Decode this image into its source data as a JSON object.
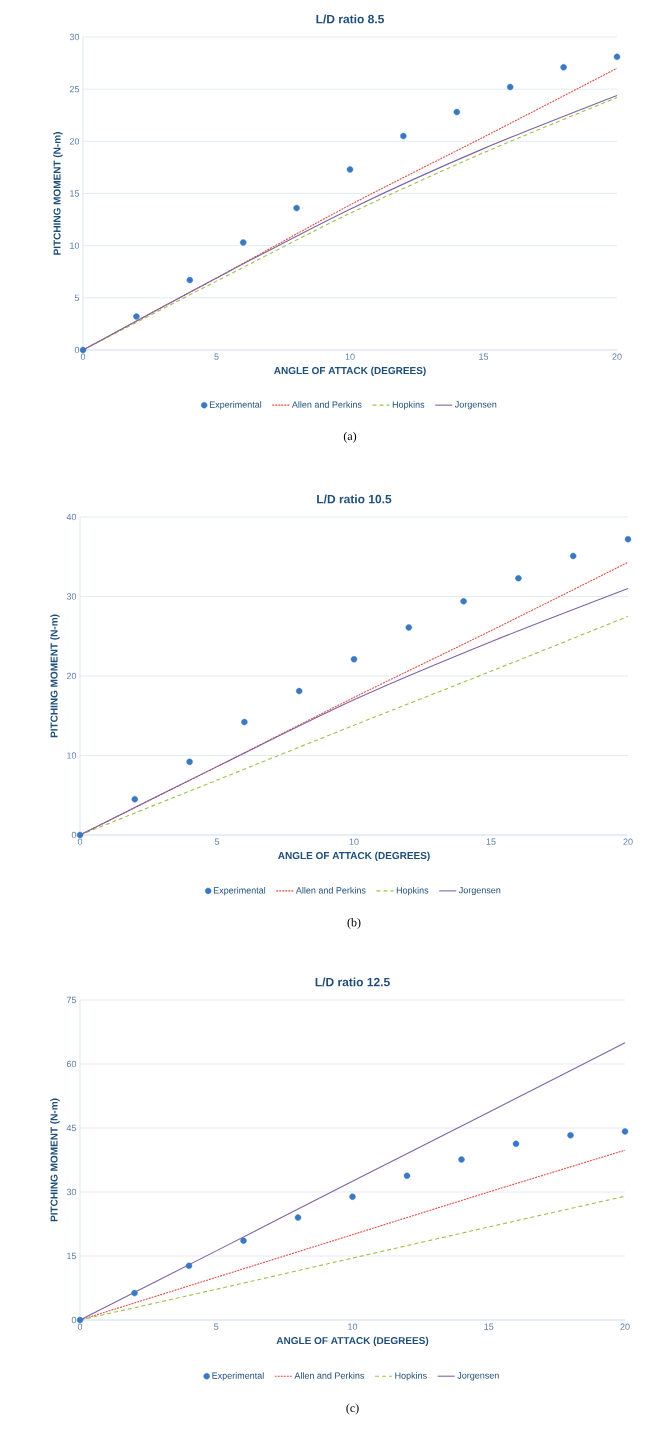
{
  "chart_data": [
    {
      "type": "scatter",
      "title": "L/D  ratio 8.5",
      "xlabel": "ANGLE OF ATTACK (DEGREES)",
      "ylabel": "PITCHING MOMENT (N-m)",
      "annotations": [
        "(a)"
      ],
      "xlim": [
        0,
        20
      ],
      "ylim": [
        0,
        30
      ],
      "xticks": [
        0,
        5,
        10,
        15,
        20
      ],
      "yticks": [
        0,
        5,
        10,
        15,
        20,
        25,
        30
      ],
      "grid": "y",
      "legend": "bottom",
      "series": [
        {
          "name": "Experimental",
          "marker": "circle",
          "color": "#3a78c3",
          "x": [
            0,
            2,
            4,
            6,
            8,
            10,
            12,
            14,
            16,
            18,
            20
          ],
          "values": [
            0,
            3.2,
            6.7,
            10.3,
            13.6,
            17.3,
            20.5,
            22.8,
            25.2,
            27.1,
            28.1
          ]
        },
        {
          "name": "Allen and Perkins",
          "type": "line",
          "marker": "none",
          "line_style": "dotted",
          "color": "#e0504a",
          "x": [
            0,
            5,
            10,
            15,
            20
          ],
          "values": [
            0,
            6.9,
            13.9,
            20.4,
            27.0
          ]
        },
        {
          "name": "Hopkins",
          "type": "line",
          "marker": "none",
          "line_style": "dashed",
          "color": "#9bc24a",
          "x": [
            0,
            5,
            10,
            15,
            20
          ],
          "values": [
            0,
            6.6,
            13.1,
            18.9,
            24.2
          ]
        },
        {
          "name": "Jorgensen",
          "type": "line",
          "marker": "none",
          "line_style": "solid",
          "color": "#8064a2",
          "x": [
            0,
            5,
            10,
            15,
            20
          ],
          "values": [
            0,
            6.9,
            13.5,
            19.3,
            24.4
          ]
        }
      ]
    },
    {
      "type": "scatter",
      "title": "L/D  ratio 10.5",
      "xlabel": "ANGLE OF ATTACK (DEGREES)",
      "ylabel": "PITCHING MOMENT (N-m)",
      "annotations": [
        "(b)"
      ],
      "xlim": [
        0,
        20
      ],
      "ylim": [
        0,
        40
      ],
      "xticks": [
        0,
        5,
        10,
        15,
        20
      ],
      "yticks": [
        0,
        10,
        20,
        30,
        40
      ],
      "grid": "y",
      "legend": "bottom",
      "series": [
        {
          "name": "Experimental",
          "marker": "circle",
          "color": "#3a78c3",
          "x": [
            0,
            2,
            4,
            6,
            8,
            10,
            12,
            14,
            16,
            18,
            20
          ],
          "values": [
            0,
            4.5,
            9.2,
            14.2,
            18.1,
            22.1,
            26.1,
            29.4,
            32.3,
            35.1,
            37.2
          ]
        },
        {
          "name": "Allen and Perkins",
          "type": "line",
          "marker": "none",
          "line_style": "dotted",
          "color": "#e0504a",
          "x": [
            0,
            5,
            10,
            15,
            20
          ],
          "values": [
            0,
            8.6,
            17.3,
            25.7,
            34.3
          ]
        },
        {
          "name": "Hopkins",
          "type": "line",
          "marker": "none",
          "line_style": "dashed",
          "color": "#9bc24a",
          "x": [
            0,
            5,
            10,
            15,
            20
          ],
          "values": [
            0,
            6.9,
            13.8,
            20.6,
            27.5
          ]
        },
        {
          "name": "Jorgensen",
          "type": "line",
          "marker": "none",
          "line_style": "solid",
          "color": "#8064a2",
          "x": [
            0,
            5,
            10,
            15,
            20
          ],
          "values": [
            0,
            8.6,
            17.0,
            24.3,
            31.0
          ]
        }
      ]
    },
    {
      "type": "scatter",
      "title": "L/D  ratio 12.5",
      "xlabel": "ANGLE OF ATTACK (DEGREES)",
      "ylabel": "PITCHING MOMENT (N-m)",
      "annotations": [
        "(c)"
      ],
      "xlim": [
        0,
        20
      ],
      "ylim": [
        0,
        75
      ],
      "xticks": [
        0,
        5,
        10,
        15,
        20
      ],
      "yticks": [
        0,
        15,
        30,
        45,
        60,
        75
      ],
      "grid": "y",
      "legend": "bottom",
      "series": [
        {
          "name": "Experimental",
          "marker": "circle",
          "color": "#3a78c3",
          "x": [
            0,
            2,
            4,
            6,
            8,
            10,
            12,
            14,
            16,
            18,
            20
          ],
          "values": [
            0,
            6.3,
            12.7,
            18.6,
            24.0,
            28.9,
            33.8,
            37.6,
            41.3,
            43.3,
            44.2
          ]
        },
        {
          "name": "Allen and Perkins",
          "type": "line",
          "marker": "none",
          "line_style": "dotted",
          "color": "#e0504a",
          "x": [
            0,
            5,
            10,
            15,
            20
          ],
          "values": [
            0,
            10,
            20,
            30,
            39.8
          ]
        },
        {
          "name": "Hopkins",
          "type": "line",
          "marker": "none",
          "line_style": "dashed",
          "color": "#9bc24a",
          "x": [
            0,
            5,
            10,
            15,
            20
          ],
          "values": [
            0,
            7.2,
            14.5,
            21.8,
            29
          ]
        },
        {
          "name": "Jorgensen",
          "type": "line",
          "marker": "none",
          "line_style": "solid",
          "color": "#8064a2",
          "x": [
            0,
            5,
            10,
            15,
            20
          ],
          "values": [
            0,
            16.2,
            32.5,
            48.7,
            65
          ]
        }
      ]
    }
  ]
}
